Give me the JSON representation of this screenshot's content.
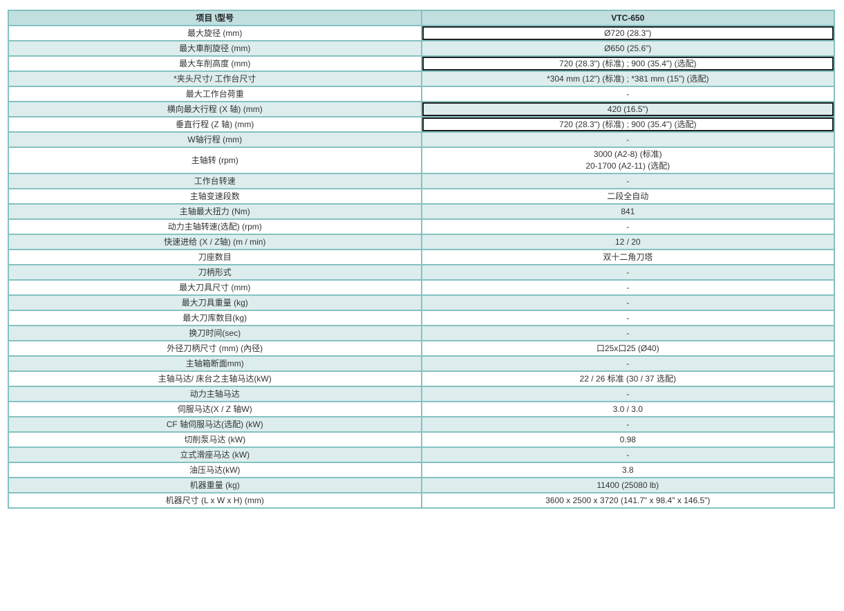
{
  "table": {
    "header": {
      "item_model_label": "项目 \\型号",
      "model_name": "VTC-650"
    },
    "rows": [
      {
        "label": "最大旋径 (mm)",
        "value": "Ø720 (28.3\")",
        "boxed": true
      },
      {
        "label": "最大車削旋径 (mm)",
        "value": "Ø650 (25.6\")",
        "boxed": false
      },
      {
        "label": "最大车削高度 (mm)",
        "value": "720 (28.3\") (标准) ; 900 (35.4\") (选配)",
        "boxed": true
      },
      {
        "label": "*夹头尺寸/ 工作台尺寸",
        "value": "*304 mm (12\") (标准) ; *381 mm (15\") (选配)",
        "boxed": false
      },
      {
        "label": "最大工作台荷重",
        "value": "-",
        "boxed": false
      },
      {
        "label": "横向最大行程 (X 轴) (mm)",
        "value": "420 (16.5\")",
        "boxed": true
      },
      {
        "label": "垂直行程 (Z 轴) (mm)",
        "value": "720 (28.3\") (标准) ; 900 (35.4\") (选配)",
        "boxed": true
      },
      {
        "label": "W轴行程 (mm)",
        "value": "-",
        "boxed": false
      },
      {
        "label": "主轴转 (rpm)",
        "value": [
          "3000 (A2-8) (标准)",
          "20-1700 (A2-11) (选配)"
        ],
        "boxed": false
      },
      {
        "label": "工作台转速",
        "value": "-",
        "boxed": false
      },
      {
        "label": "主轴变速段数",
        "value": "二段全自动",
        "boxed": false
      },
      {
        "label": "主轴最大扭力 (Nm)",
        "value": "841",
        "boxed": false
      },
      {
        "label": "动力主轴转速(选配) (rpm)",
        "value": "-",
        "boxed": false
      },
      {
        "label": "快速进给 (X / Z轴) (m / min)",
        "value": "12 / 20",
        "boxed": false
      },
      {
        "label": "刀座数目",
        "value": "双十二角刀塔",
        "boxed": false
      },
      {
        "label": "刀柄形式",
        "value": "-",
        "boxed": false
      },
      {
        "label": "最大刀具尺寸 (mm)",
        "value": "-",
        "boxed": false
      },
      {
        "label": "最大刀具重量 (kg)",
        "value": "-",
        "boxed": false
      },
      {
        "label": "最大刀库数目(kg)",
        "value": "-",
        "boxed": false
      },
      {
        "label": "换刀时间(sec)",
        "value": "-",
        "boxed": false
      },
      {
        "label": "外径刀柄尺寸 (mm) (內径)",
        "value": "口25x口25 (Ø40)",
        "boxed": false
      },
      {
        "label": "主轴箱断面mm)",
        "value": "-",
        "boxed": false
      },
      {
        "label": "主轴马达/ 床台之主轴马达(kW)",
        "value": "22 / 26 标准 (30 / 37 选配)",
        "boxed": false
      },
      {
        "label": "动力主轴马达",
        "value": "-",
        "boxed": false
      },
      {
        "label": "伺服马达(X / Z 轴W)",
        "value": "3.0 / 3.0",
        "boxed": false
      },
      {
        "label": "CF 轴伺服马达(选配) (kW)",
        "value": "-",
        "boxed": false
      },
      {
        "label": "切削泵马达 (kW)",
        "value": "0.98",
        "boxed": false
      },
      {
        "label": "立式滑座马达 (kW)",
        "value": "-",
        "boxed": false
      },
      {
        "label": "油压马达(kW)",
        "value": "3.8",
        "boxed": false
      },
      {
        "label": "机器重量 (kg)",
        "value": "11400 (25080 lb)",
        "boxed": false
      },
      {
        "label": "机器尺寸 (L x W x H) (mm)",
        "value": "3600 x 2500 x 3720 (141.7\" x 98.4\" x 146.5\")",
        "boxed": false
      }
    ],
    "colors": {
      "header_bg": "#c2dfdf",
      "row_shade_bg": "#ddeded",
      "grid_border": "#85c1c1",
      "emphasis_border": "#1f1f1f",
      "text": "#333333"
    }
  }
}
